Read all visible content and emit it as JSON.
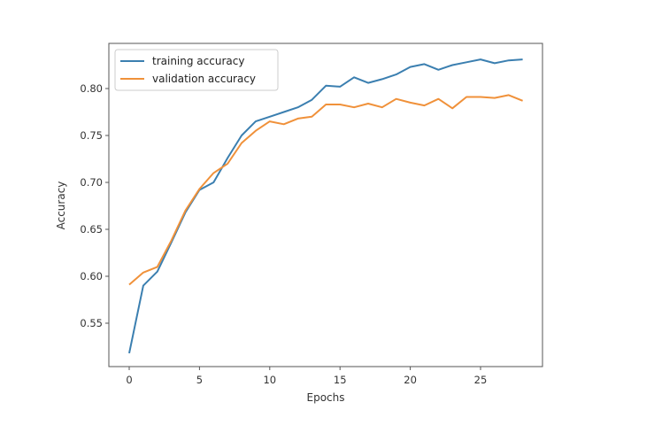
{
  "chart_data": {
    "type": "line",
    "title": "",
    "xlabel": "Epochs",
    "ylabel": "Accuracy",
    "xlim": [
      -1.4,
      29.4
    ],
    "ylim": [
      0.51,
      0.845
    ],
    "xticks": [
      0,
      5,
      10,
      15,
      20,
      25
    ],
    "yticks": [
      0.55,
      0.6,
      0.65,
      0.7,
      0.75,
      0.8
    ],
    "ytick_labels": [
      "0.55",
      "0.60",
      "0.65",
      "0.70",
      "0.75",
      "0.80"
    ],
    "grid": false,
    "legend_position": "upper left",
    "x": [
      0,
      1,
      2,
      3,
      4,
      5,
      6,
      7,
      8,
      9,
      10,
      11,
      12,
      13,
      14,
      15,
      16,
      17,
      18,
      19,
      20,
      21,
      22,
      23,
      24,
      25,
      26,
      27,
      28
    ],
    "series": [
      {
        "name": "training accuracy",
        "color": "#3b7fb0",
        "values": [
          0.518,
          0.59,
          0.605,
          0.636,
          0.668,
          0.692,
          0.7,
          0.726,
          0.75,
          0.765,
          0.77,
          0.775,
          0.78,
          0.788,
          0.803,
          0.802,
          0.812,
          0.806,
          0.81,
          0.815,
          0.823,
          0.826,
          0.82,
          0.825,
          0.828,
          0.831,
          0.827,
          0.83,
          0.831
        ]
      },
      {
        "name": "validation accuracy",
        "color": "#f0913a",
        "values": [
          0.591,
          0.604,
          0.61,
          0.638,
          0.67,
          0.693,
          0.71,
          0.72,
          0.742,
          0.755,
          0.765,
          0.762,
          0.768,
          0.77,
          0.783,
          0.783,
          0.78,
          0.784,
          0.78,
          0.789,
          0.785,
          0.782,
          0.789,
          0.779,
          0.791,
          0.791,
          0.79,
          0.793,
          0.787
        ]
      }
    ]
  }
}
